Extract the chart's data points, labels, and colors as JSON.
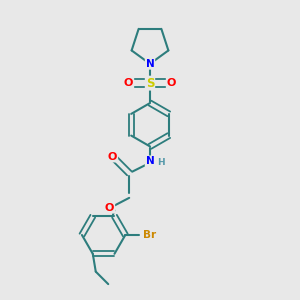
{
  "background_color": "#e8e8e8",
  "bond_color": "#2d7d7d",
  "atom_colors": {
    "O": "#ff0000",
    "N": "#0000ff",
    "S": "#cccc00",
    "Br": "#cc8800",
    "H": "#5599aa",
    "C": "#2d7d7d"
  },
  "figsize": [
    3.0,
    3.0
  ],
  "dpi": 100
}
